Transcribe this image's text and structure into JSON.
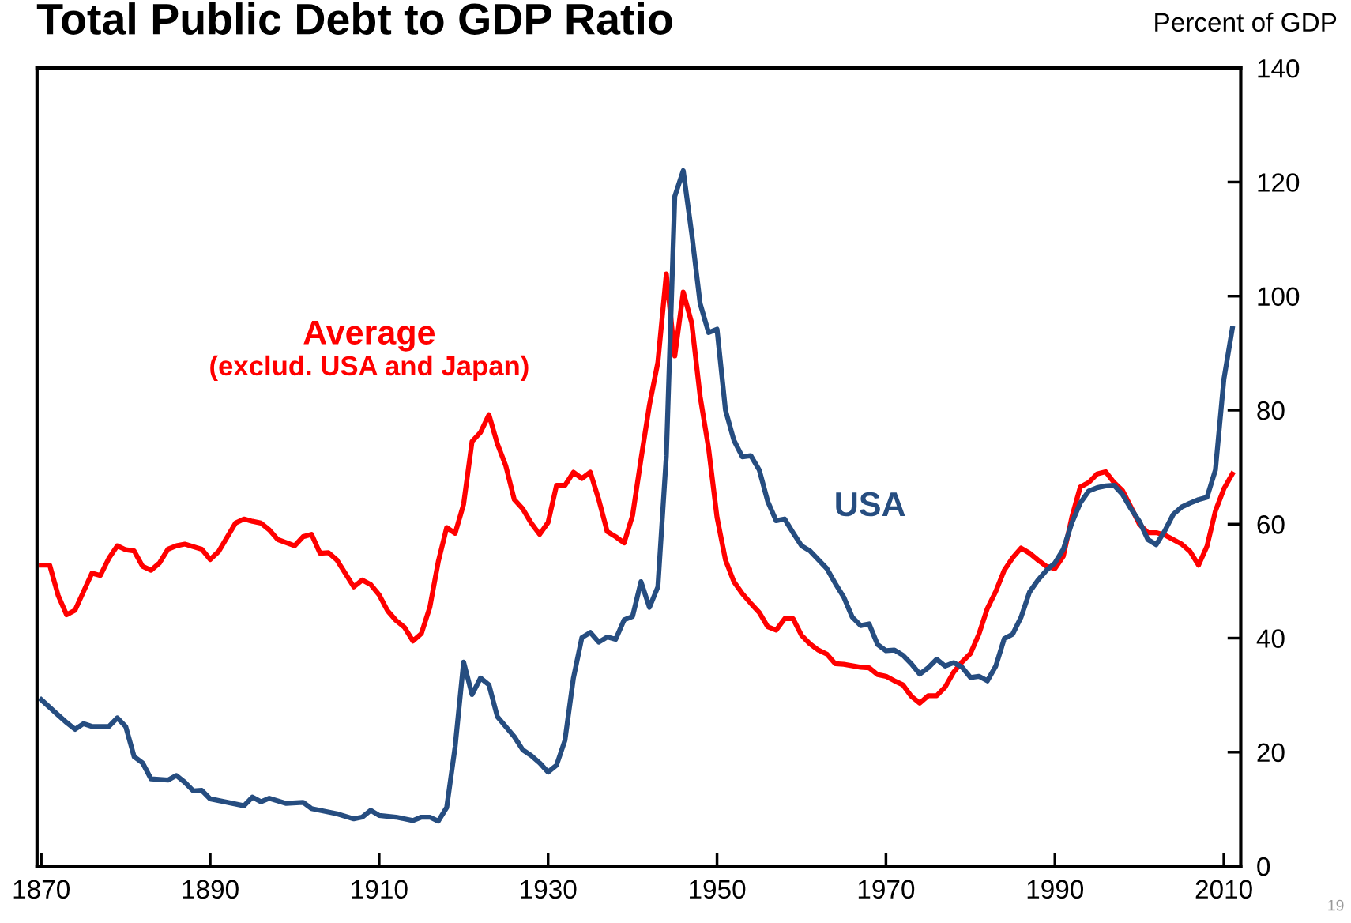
{
  "chart_data": {
    "type": "line",
    "title": "Total Public Debt to GDP Ratio",
    "ylabel": "Percent of GDP",
    "xlim": [
      1869.5,
      2012
    ],
    "ylim": [
      0,
      140
    ],
    "yticks": [
      0,
      20,
      40,
      60,
      80,
      100,
      120,
      140
    ],
    "xticks": [
      1870,
      1890,
      1910,
      1930,
      1950,
      1970,
      1990,
      2010
    ],
    "grid": false,
    "legend": false,
    "line_style": "solid",
    "marker": "none",
    "annotations": [
      "19"
    ],
    "series": [
      {
        "name": "Average\n(exclud. USA and Japan)",
        "color": "#ff0000",
        "x": [
          1870,
          1871,
          1872,
          1873,
          1874,
          1876,
          1877,
          1878,
          1879,
          1880,
          1881,
          1882,
          1883,
          1884,
          1885,
          1886,
          1887,
          1889,
          1890,
          1891,
          1893,
          1894,
          1895,
          1896,
          1897,
          1898,
          1900,
          1901,
          1902,
          1903,
          1904,
          1905,
          1907,
          1908,
          1909,
          1910,
          1911,
          1912,
          1913,
          1914,
          1915,
          1916,
          1917,
          1918,
          1919,
          1920,
          1921,
          1922,
          1923,
          1924,
          1925,
          1926,
          1927,
          1928,
          1929,
          1930,
          1931,
          1932,
          1933,
          1934,
          1935,
          1936,
          1937,
          1938,
          1939,
          1940,
          1941,
          1942,
          1943,
          1944,
          1945,
          1946,
          1947,
          1948,
          1949,
          1950,
          1951,
          1952,
          1953,
          1954,
          1955,
          1956,
          1957,
          1958,
          1959,
          1960,
          1961,
          1962,
          1963,
          1964,
          1965,
          1967,
          1968,
          1969,
          1970,
          1971,
          1972,
          1973,
          1974,
          1975,
          1976,
          1977,
          1978,
          1979,
          1980,
          1981,
          1982,
          1983,
          1984,
          1985,
          1986,
          1987,
          1988,
          1989,
          1990,
          1991,
          1992,
          1993,
          1994,
          1995,
          1996,
          1997,
          1998,
          1999,
          2000,
          2001,
          2002,
          2003,
          2004,
          2005,
          2006,
          2007,
          2008,
          2009,
          2010,
          2011
        ],
        "values": [
          52.8,
          52.8,
          47.5,
          44.1,
          44.9,
          51.4,
          51,
          54,
          56.2,
          55.5,
          55.3,
          52.6,
          51.9,
          53.2,
          55.6,
          56.2,
          56.5,
          55.6,
          53.8,
          55.2,
          60.2,
          60.9,
          60.5,
          60.2,
          59,
          57.3,
          56.2,
          57.8,
          58.2,
          54.9,
          55,
          53.7,
          49,
          50.2,
          49.4,
          47.6,
          44.8,
          43.1,
          41.9,
          39.5,
          40.8,
          45.4,
          53.4,
          59.4,
          58.4,
          63.5,
          74.5,
          76.1,
          79.2,
          74.1,
          70.2,
          64.3,
          62.7,
          60.2,
          58.2,
          60.3,
          66.8,
          66.8,
          69.1,
          68,
          69.1,
          64.3,
          58.7,
          57.8,
          56.7,
          61.5,
          71.4,
          80.9,
          88.4,
          103.9,
          89.5,
          100.7,
          95.3,
          82.4,
          73.3,
          61.2,
          53.7,
          49.9,
          47.8,
          46.1,
          44.5,
          42,
          41.4,
          43.4,
          43.4,
          40.5,
          39,
          37.9,
          37.2,
          35.5,
          35.4,
          34.9,
          34.8,
          33.6,
          33.3,
          32.5,
          31.8,
          29.8,
          28.6,
          29.9,
          29.9,
          31.4,
          34,
          35.8,
          37.3,
          40.7,
          45.2,
          48.2,
          51.9,
          54.1,
          55.8,
          54.9,
          53.7,
          52.6,
          52.2,
          54.4,
          61.2,
          66.5,
          67.3,
          68.8,
          69.2,
          67.3,
          65.9,
          63,
          60,
          58.5,
          58.5,
          58.1,
          57.3,
          56.5,
          55.2,
          52.8,
          56.1,
          62.3,
          66.2,
          68.8
        ]
      },
      {
        "name": "USA",
        "color": "#264d80",
        "x": [
          1870,
          1872,
          1873,
          1874,
          1875,
          1876,
          1878,
          1879,
          1880,
          1881,
          1882,
          1883,
          1885,
          1886,
          1887,
          1888,
          1889,
          1890,
          1894,
          1895,
          1896,
          1897,
          1899,
          1901,
          1902,
          1905,
          1907,
          1908,
          1909,
          1910,
          1912,
          1914,
          1915,
          1916,
          1917,
          1918,
          1919,
          1920,
          1921,
          1922,
          1923,
          1924,
          1926,
          1927,
          1928,
          1929,
          1930,
          1931,
          1932,
          1933,
          1934,
          1935,
          1936,
          1937,
          1938,
          1939,
          1940,
          1941,
          1942,
          1943,
          1944,
          1945,
          1946,
          1947,
          1948,
          1949,
          1950,
          1951,
          1952,
          1953,
          1954,
          1955,
          1956,
          1957,
          1958,
          1959,
          1960,
          1961,
          1963,
          1964,
          1965,
          1966,
          1967,
          1968,
          1969,
          1970,
          1971,
          1972,
          1973,
          1974,
          1975,
          1976,
          1977,
          1978,
          1979,
          1980,
          1981,
          1982,
          1983,
          1984,
          1985,
          1986,
          1987,
          1988,
          1989,
          1990,
          1991,
          1992,
          1993,
          1994,
          1995,
          1996,
          1997,
          1998,
          1999,
          2000,
          2001,
          2002,
          2003,
          2004,
          2005,
          2006,
          2007,
          2008,
          2009,
          2010,
          2011
        ],
        "values": [
          29.2,
          26.5,
          25.2,
          24,
          25,
          24.5,
          24.5,
          26,
          24.5,
          19.2,
          18.1,
          15.3,
          15.1,
          15.9,
          14.7,
          13.2,
          13.3,
          11.8,
          10.6,
          12.1,
          11.3,
          11.9,
          11,
          11.2,
          10.1,
          9.2,
          8.3,
          8.6,
          9.8,
          8.9,
          8.6,
          8,
          8.6,
          8.6,
          7.9,
          10.3,
          21,
          35.8,
          30.1,
          33,
          31.8,
          26.2,
          22.7,
          20.4,
          19.4,
          18.1,
          16.5,
          17.7,
          22.1,
          33,
          40.1,
          41,
          39.3,
          40.2,
          39.8,
          43.2,
          43.8,
          49.9,
          45.4,
          49,
          72,
          117.5,
          122,
          111,
          98.7,
          93.6,
          94.2,
          80,
          74.7,
          71.8,
          72,
          69.5,
          64,
          60.6,
          60.9,
          58.5,
          56.2,
          55.3,
          52.2,
          49.6,
          47.2,
          43.7,
          42.2,
          42.5,
          38.9,
          37.8,
          37.9,
          37,
          35.5,
          33.7,
          34.8,
          36.3,
          35.1,
          35.7,
          34.9,
          33.1,
          33.3,
          32.5,
          35.1,
          39.9,
          40.7,
          43.7,
          48.1,
          50.2,
          51.9,
          53.2,
          55.6,
          60.2,
          63.7,
          65.8,
          66.4,
          66.7,
          66.8,
          65.2,
          62.7,
          60.5,
          57.3,
          56.4,
          58.8,
          61.7,
          63,
          63.7,
          64.3,
          64.7,
          69.5,
          85.4,
          94.3
        ]
      }
    ]
  }
}
